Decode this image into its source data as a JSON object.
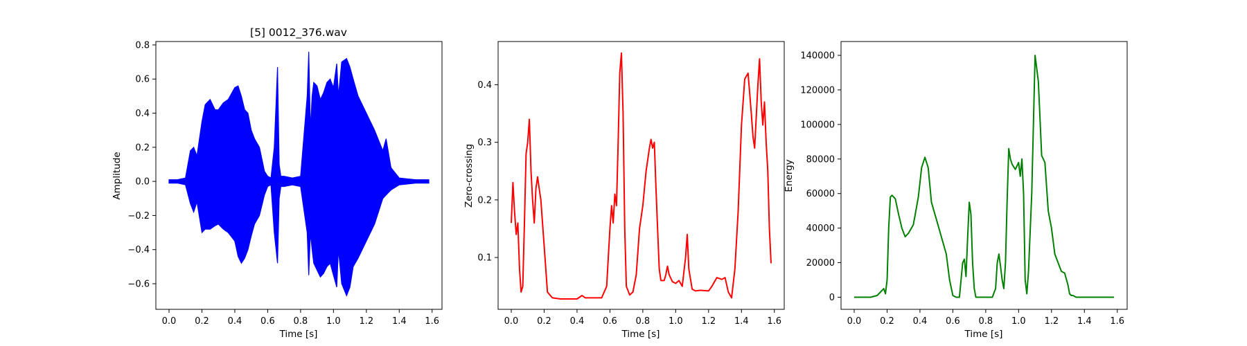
{
  "chart_data": [
    {
      "type": "line",
      "title": "[5] 0012_376.wav",
      "xlabel": "Time [s]",
      "ylabel": "Amplitude",
      "xlim": [
        -0.08,
        1.66
      ],
      "ylim": [
        -0.75,
        0.82
      ],
      "xticks": [
        0.0,
        0.2,
        0.4,
        0.6,
        0.8,
        1.0,
        1.2,
        1.4,
        1.6
      ],
      "xtick_labels": [
        "0.0",
        "0.2",
        "0.4",
        "0.6",
        "0.8",
        "1.0",
        "1.2",
        "1.4",
        "1.6"
      ],
      "yticks": [
        -0.6,
        -0.4,
        -0.2,
        0.0,
        0.2,
        0.4,
        0.6,
        0.8
      ],
      "ytick_labels": [
        "−0.6",
        "−0.4",
        "−0.2",
        "0.0",
        "0.2",
        "0.4",
        "0.6",
        "0.8"
      ],
      "grid": false,
      "color": "#0000ff",
      "series": [
        {
          "style": "envelope",
          "x": [
            0.0,
            0.05,
            0.1,
            0.13,
            0.15,
            0.17,
            0.2,
            0.22,
            0.25,
            0.28,
            0.3,
            0.33,
            0.36,
            0.4,
            0.42,
            0.44,
            0.46,
            0.48,
            0.5,
            0.52,
            0.55,
            0.58,
            0.6,
            0.62,
            0.64,
            0.66,
            0.67,
            0.68,
            0.7,
            0.75,
            0.8,
            0.84,
            0.85,
            0.86,
            0.87,
            0.88,
            0.9,
            0.92,
            0.94,
            0.96,
            0.98,
            1.0,
            1.02,
            1.03,
            1.05,
            1.08,
            1.1,
            1.12,
            1.15,
            1.2,
            1.25,
            1.3,
            1.32,
            1.35,
            1.4,
            1.5,
            1.58
          ],
          "upper": [
            0.01,
            0.01,
            0.02,
            0.18,
            0.2,
            0.15,
            0.35,
            0.45,
            0.48,
            0.42,
            0.42,
            0.46,
            0.48,
            0.55,
            0.56,
            0.5,
            0.42,
            0.4,
            0.3,
            0.25,
            0.2,
            0.06,
            0.03,
            0.02,
            0.2,
            0.67,
            0.1,
            0.03,
            0.03,
            0.02,
            0.03,
            0.5,
            0.76,
            0.3,
            0.5,
            0.58,
            0.56,
            0.48,
            0.52,
            0.58,
            0.6,
            0.55,
            0.69,
            0.5,
            0.7,
            0.72,
            0.67,
            0.6,
            0.5,
            0.4,
            0.3,
            0.18,
            0.25,
            0.08,
            0.02,
            0.01,
            0.01
          ],
          "lower": [
            -0.01,
            -0.01,
            -0.02,
            -0.13,
            -0.18,
            -0.12,
            -0.3,
            -0.28,
            -0.28,
            -0.26,
            -0.25,
            -0.28,
            -0.3,
            -0.35,
            -0.44,
            -0.48,
            -0.45,
            -0.4,
            -0.32,
            -0.25,
            -0.2,
            -0.08,
            -0.03,
            -0.02,
            -0.3,
            -0.48,
            -0.1,
            -0.03,
            -0.03,
            -0.02,
            -0.03,
            -0.3,
            -0.55,
            -0.3,
            -0.4,
            -0.48,
            -0.52,
            -0.56,
            -0.54,
            -0.5,
            -0.48,
            -0.55,
            -0.62,
            -0.4,
            -0.6,
            -0.67,
            -0.62,
            -0.5,
            -0.45,
            -0.35,
            -0.25,
            -0.1,
            -0.08,
            -0.05,
            -0.02,
            -0.01,
            -0.01
          ]
        }
      ]
    },
    {
      "type": "line",
      "title": "",
      "xlabel": "Time [s]",
      "ylabel": "Zero-crossing",
      "xlim": [
        -0.08,
        1.66
      ],
      "ylim": [
        0.01,
        0.475
      ],
      "xticks": [
        0.0,
        0.2,
        0.4,
        0.6,
        0.8,
        1.0,
        1.2,
        1.4,
        1.6
      ],
      "xtick_labels": [
        "0.0",
        "0.2",
        "0.4",
        "0.6",
        "0.8",
        "1.0",
        "1.2",
        "1.4",
        "1.6"
      ],
      "yticks": [
        0.1,
        0.2,
        0.3,
        0.4
      ],
      "ytick_labels": [
        "0.1",
        "0.2",
        "0.3",
        "0.4"
      ],
      "grid": false,
      "color": "#ff0000",
      "series": [
        {
          "x": [
            0.0,
            0.01,
            0.02,
            0.03,
            0.04,
            0.05,
            0.06,
            0.07,
            0.08,
            0.09,
            0.1,
            0.11,
            0.12,
            0.13,
            0.14,
            0.15,
            0.16,
            0.17,
            0.18,
            0.2,
            0.22,
            0.25,
            0.3,
            0.35,
            0.4,
            0.43,
            0.45,
            0.5,
            0.55,
            0.58,
            0.6,
            0.61,
            0.62,
            0.63,
            0.64,
            0.65,
            0.66,
            0.67,
            0.68,
            0.69,
            0.7,
            0.72,
            0.74,
            0.76,
            0.78,
            0.8,
            0.82,
            0.84,
            0.85,
            0.86,
            0.87,
            0.88,
            0.89,
            0.9,
            0.91,
            0.92,
            0.93,
            0.94,
            0.95,
            0.96,
            0.98,
            1.0,
            1.02,
            1.04,
            1.06,
            1.07,
            1.08,
            1.1,
            1.12,
            1.15,
            1.2,
            1.22,
            1.25,
            1.28,
            1.3,
            1.32,
            1.34,
            1.36,
            1.38,
            1.4,
            1.42,
            1.44,
            1.46,
            1.47,
            1.48,
            1.5,
            1.51,
            1.52,
            1.53,
            1.54,
            1.55,
            1.56,
            1.57,
            1.58
          ],
          "y": [
            0.16,
            0.23,
            0.18,
            0.14,
            0.16,
            0.08,
            0.04,
            0.05,
            0.16,
            0.28,
            0.3,
            0.34,
            0.25,
            0.2,
            0.16,
            0.22,
            0.24,
            0.22,
            0.2,
            0.12,
            0.04,
            0.03,
            0.028,
            0.028,
            0.028,
            0.034,
            0.03,
            0.03,
            0.03,
            0.05,
            0.15,
            0.19,
            0.16,
            0.21,
            0.19,
            0.3,
            0.42,
            0.455,
            0.35,
            0.15,
            0.05,
            0.035,
            0.04,
            0.07,
            0.15,
            0.19,
            0.25,
            0.29,
            0.305,
            0.29,
            0.3,
            0.22,
            0.15,
            0.08,
            0.06,
            0.06,
            0.06,
            0.07,
            0.085,
            0.07,
            0.058,
            0.055,
            0.06,
            0.05,
            0.1,
            0.14,
            0.08,
            0.045,
            0.042,
            0.043,
            0.042,
            0.05,
            0.065,
            0.062,
            0.065,
            0.04,
            0.03,
            0.08,
            0.18,
            0.33,
            0.41,
            0.42,
            0.35,
            0.31,
            0.29,
            0.4,
            0.445,
            0.37,
            0.33,
            0.37,
            0.3,
            0.25,
            0.15,
            0.09
          ]
        }
      ]
    },
    {
      "type": "line",
      "title": "",
      "xlabel": "Time [s]",
      "ylabel": "Energy",
      "xlim": [
        -0.08,
        1.66
      ],
      "ylim": [
        -7000,
        148000
      ],
      "xticks": [
        0.0,
        0.2,
        0.4,
        0.6,
        0.8,
        1.0,
        1.2,
        1.4,
        1.6
      ],
      "xtick_labels": [
        "0.0",
        "0.2",
        "0.4",
        "0.6",
        "0.8",
        "1.0",
        "1.2",
        "1.4",
        "1.6"
      ],
      "yticks": [
        0,
        20000,
        40000,
        60000,
        80000,
        100000,
        120000,
        140000
      ],
      "ytick_labels": [
        "0",
        "20000",
        "40000",
        "60000",
        "80000",
        "100000",
        "120000",
        "140000"
      ],
      "grid": false,
      "color": "#008000",
      "series": [
        {
          "x": [
            0.0,
            0.1,
            0.14,
            0.16,
            0.18,
            0.19,
            0.2,
            0.21,
            0.22,
            0.23,
            0.25,
            0.27,
            0.29,
            0.31,
            0.33,
            0.36,
            0.39,
            0.41,
            0.43,
            0.45,
            0.47,
            0.5,
            0.53,
            0.56,
            0.58,
            0.6,
            0.62,
            0.64,
            0.66,
            0.67,
            0.68,
            0.69,
            0.7,
            0.71,
            0.72,
            0.73,
            0.74,
            0.76,
            0.8,
            0.84,
            0.86,
            0.87,
            0.88,
            0.89,
            0.9,
            0.91,
            0.92,
            0.93,
            0.94,
            0.95,
            0.96,
            0.98,
            1.0,
            1.01,
            1.02,
            1.03,
            1.04,
            1.05,
            1.06,
            1.08,
            1.1,
            1.12,
            1.14,
            1.16,
            1.18,
            1.2,
            1.22,
            1.24,
            1.26,
            1.28,
            1.3,
            1.31,
            1.32,
            1.33,
            1.35,
            1.4,
            1.5,
            1.58
          ],
          "y": [
            0,
            0,
            1000,
            3000,
            5000,
            2000,
            10000,
            40000,
            58000,
            59000,
            57000,
            48000,
            40000,
            35000,
            37000,
            42000,
            58000,
            75000,
            81000,
            75000,
            55000,
            45000,
            35000,
            25000,
            10000,
            1000,
            0,
            0,
            20000,
            22000,
            12000,
            35000,
            55000,
            48000,
            20000,
            5000,
            0,
            0,
            0,
            0,
            5000,
            20000,
            25000,
            18000,
            10000,
            5000,
            20000,
            55000,
            86000,
            80000,
            77000,
            74000,
            78000,
            70000,
            80000,
            60000,
            10000,
            2000,
            15000,
            60000,
            140000,
            125000,
            82000,
            78000,
            50000,
            40000,
            25000,
            20000,
            15000,
            14000,
            7000,
            2000,
            1000,
            1000,
            0,
            0,
            0,
            0
          ]
        }
      ]
    }
  ]
}
